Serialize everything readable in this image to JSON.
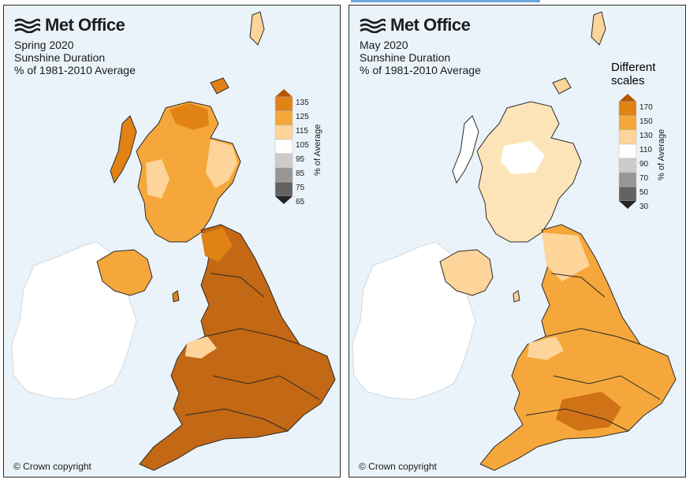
{
  "left": {
    "logo": "Met Office",
    "title_lines": [
      "Spring 2020",
      "Sunshine Duration",
      "% of 1981-2010 Average"
    ],
    "legend_label": "% of Average",
    "legend_ticks": [
      "135",
      "125",
      "115",
      "105",
      "95",
      "85",
      "75",
      "65"
    ],
    "legend_colors": [
      "#b35806",
      "#e08214",
      "#f5a73b",
      "#fdd49a",
      "#ffffff",
      "#cccccc",
      "#969696",
      "#636363",
      "#252525"
    ],
    "copyright": "© Crown copyright"
  },
  "right": {
    "logo": "Met Office",
    "title_lines": [
      "May 2020",
      "Sunshine Duration",
      "% of 1981-2010 Average"
    ],
    "note_lines": [
      "Different",
      "scales"
    ],
    "legend_label": "% of Average",
    "legend_ticks": [
      "170",
      "150",
      "130",
      "110",
      "90",
      "70",
      "50",
      "30"
    ],
    "legend_colors": [
      "#b35806",
      "#e08214",
      "#f5a73b",
      "#fdd49a",
      "#ffffff",
      "#cccccc",
      "#969696",
      "#636363",
      "#252525"
    ],
    "copyright": "© Crown copyright"
  }
}
